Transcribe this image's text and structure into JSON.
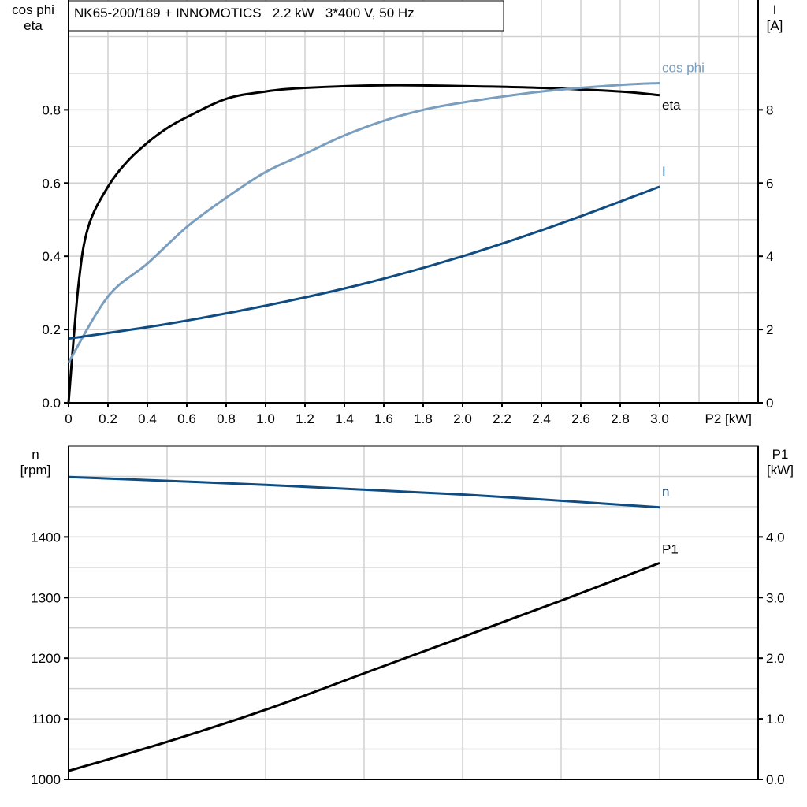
{
  "title": "NK65-200/189 + INNOMOTICS   2.2 kW   3*400 V, 50 Hz",
  "chart_data": [
    {
      "type": "line",
      "xlabel": "P2 [kW]",
      "xlim": [
        0,
        3.5
      ],
      "x_ticks": [
        "0",
        "0.2",
        "0.4",
        "0.6",
        "0.8",
        "1.0",
        "1.2",
        "1.4",
        "1.6",
        "1.8",
        "2.0",
        "2.2",
        "2.4",
        "2.6",
        "2.8",
        "3.0"
      ],
      "ylabel_left": [
        "cos phi",
        "eta"
      ],
      "ylim_left": [
        0,
        1.1
      ],
      "y_ticks_left": [
        "0.0",
        "0.2",
        "0.4",
        "0.6",
        "0.8"
      ],
      "ylabel_right": [
        "I",
        "[A]"
      ],
      "ylim_right": [
        0,
        11
      ],
      "y_ticks_right": [
        "0",
        "2",
        "4",
        "6",
        "8"
      ],
      "grid": true,
      "series": [
        {
          "name": "eta",
          "axis": "left",
          "color": "#000000",
          "x": [
            0,
            0.05,
            0.1,
            0.2,
            0.3,
            0.4,
            0.5,
            0.6,
            0.8,
            1.0,
            1.2,
            1.6,
            2.0,
            2.4,
            2.8,
            3.0
          ],
          "y": [
            0,
            0.32,
            0.48,
            0.59,
            0.66,
            0.71,
            0.75,
            0.78,
            0.83,
            0.85,
            0.86,
            0.867,
            0.865,
            0.86,
            0.85,
            0.84
          ]
        },
        {
          "name": "cos phi",
          "axis": "left",
          "color": "#7a9ebf",
          "x": [
            0,
            0.2,
            0.4,
            0.6,
            0.8,
            1.0,
            1.2,
            1.4,
            1.6,
            1.8,
            2.0,
            2.4,
            2.8,
            3.0
          ],
          "y": [
            0.11,
            0.29,
            0.38,
            0.48,
            0.56,
            0.63,
            0.68,
            0.73,
            0.77,
            0.8,
            0.82,
            0.85,
            0.868,
            0.873
          ]
        },
        {
          "name": "I",
          "axis": "right",
          "color": "#0f4c81",
          "x": [
            0,
            0.5,
            1.0,
            1.5,
            2.0,
            2.5,
            3.0
          ],
          "y": [
            1.75,
            2.15,
            2.65,
            3.25,
            4.0,
            4.9,
            5.9
          ]
        }
      ]
    },
    {
      "type": "line",
      "xlim": [
        0,
        3.5
      ],
      "ylabel_left": [
        "n",
        "[rpm]"
      ],
      "ylim_left": [
        1000,
        1550
      ],
      "y_ticks_left": [
        "1000",
        "1100",
        "1200",
        "1300",
        "1400"
      ],
      "ylabel_right": [
        "P1",
        "[kW]"
      ],
      "ylim_right": [
        0,
        5.5
      ],
      "y_ticks_right": [
        "0.0",
        "1.0",
        "2.0",
        "3.0",
        "4.0"
      ],
      "grid": true,
      "series": [
        {
          "name": "n",
          "axis": "left",
          "color": "#0f4c81",
          "x": [
            0,
            1.0,
            2.0,
            3.0
          ],
          "y": [
            1499,
            1486,
            1470,
            1449
          ]
        },
        {
          "name": "P1",
          "axis": "right",
          "color": "#000000",
          "x": [
            0,
            0.5,
            1.0,
            1.5,
            2.0,
            2.5,
            3.0
          ],
          "y": [
            0.14,
            0.62,
            1.15,
            1.75,
            2.35,
            2.95,
            3.57
          ]
        }
      ]
    }
  ]
}
